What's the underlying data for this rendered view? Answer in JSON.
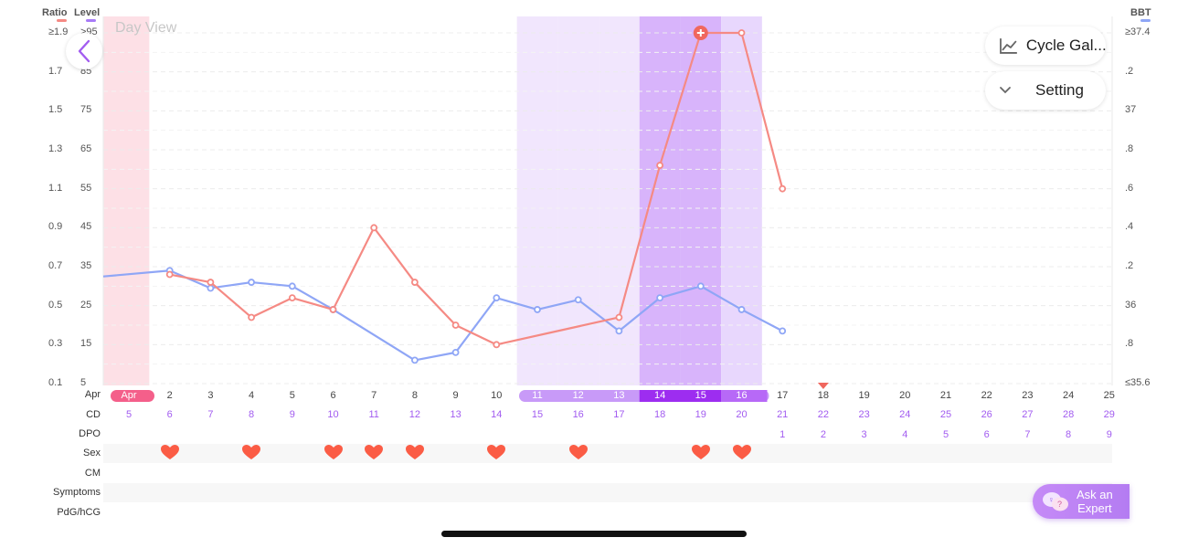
{
  "header": {
    "ratio_label": "Ratio",
    "level_label": "Level",
    "bbt_label": "BBT",
    "ratio_color": "#f58a84",
    "level_color": "#a77af7",
    "bbt_color": "#8fa6f6"
  },
  "day_view_label": "Day View",
  "buttons": {
    "cycle_gallery": "Cycle Gal...",
    "setting": "Setting",
    "ask_expert_line1": "Ask an",
    "ask_expert_line2": "Expert"
  },
  "axes": {
    "ratio_ticks": [
      "≥1.9",
      "1.7",
      "1.5",
      "1.3",
      "1.1",
      "0.9",
      "0.7",
      "0.5",
      "0.3",
      "0.1"
    ],
    "level_ticks": [
      ">95",
      "85",
      "75",
      "65",
      "55",
      "45",
      "35",
      "25",
      "15",
      "5"
    ],
    "bbt_ticks": [
      "≥37.4",
      ".2",
      "37",
      ".8",
      ".6",
      ".4",
      ".2",
      "36",
      ".8",
      "≤35.6"
    ]
  },
  "rows": {
    "labels": [
      "Apr",
      "CD",
      "DPO",
      "Sex",
      "CM",
      "Symptoms",
      "PdG/hCG"
    ],
    "dates": [
      "Apr",
      "2",
      "3",
      "4",
      "5",
      "6",
      "7",
      "8",
      "9",
      "10",
      "11",
      "12",
      "13",
      "14",
      "15",
      "16",
      "17",
      "18",
      "19",
      "20",
      "21",
      "22",
      "23",
      "24",
      "25"
    ],
    "cd": [
      "5",
      "6",
      "7",
      "8",
      "9",
      "10",
      "11",
      "12",
      "13",
      "14",
      "15",
      "16",
      "17",
      "18",
      "19",
      "20",
      "21",
      "22",
      "23",
      "24",
      "25",
      "26",
      "27",
      "28",
      "29"
    ],
    "dpo": [
      "",
      "",
      "",
      "",
      "",
      "",
      "",
      "",
      "",
      "",
      "",
      "",
      "",
      "",
      "",
      "",
      "1",
      "2",
      "3",
      "4",
      "5",
      "6",
      "7",
      "8",
      "9"
    ],
    "sex": [
      false,
      true,
      false,
      true,
      false,
      true,
      true,
      true,
      false,
      true,
      false,
      true,
      false,
      false,
      true,
      true,
      false,
      false,
      false,
      false,
      false,
      false,
      false,
      false,
      false
    ]
  },
  "chart_data": {
    "type": "line",
    "x_labels": [
      "Apr 1",
      "Apr 2",
      "Apr 3",
      "Apr 4",
      "Apr 5",
      "Apr 6",
      "Apr 7",
      "Apr 8",
      "Apr 9",
      "Apr 10",
      "Apr 11",
      "Apr 12",
      "Apr 13",
      "Apr 14",
      "Apr 15",
      "Apr 16",
      "Apr 17",
      "Apr 18"
    ],
    "series": [
      {
        "name": "BBT",
        "x_index": [
          2,
          3,
          4,
          5,
          6,
          8,
          9,
          10,
          11,
          12,
          13,
          14,
          15,
          16,
          17
        ],
        "values": [
          36.18,
          36.09,
          36.12,
          36.1,
          35.98,
          35.72,
          35.76,
          36.04,
          35.98,
          36.03,
          35.87,
          36.04,
          36.1,
          35.98,
          35.87
        ],
        "lead_in_value": 36.15
      },
      {
        "name": "Ratio",
        "x_index": [
          2,
          3,
          4,
          5,
          6,
          7,
          8,
          9,
          10,
          13,
          14,
          15,
          16,
          17
        ],
        "values": [
          0.66,
          0.62,
          0.44,
          0.54,
          0.48,
          0.9,
          0.62,
          0.4,
          0.3,
          0.44,
          1.22,
          1.9,
          1.9,
          1.1
        ],
        "peak_marker_index": 15
      }
    ],
    "ratio_range": [
      0.1,
      1.9
    ],
    "level_range": [
      5,
      95
    ],
    "bbt_range": [
      35.6,
      37.4
    ],
    "highlights": {
      "period_days": [
        1
      ],
      "fertile_days": [
        11,
        12,
        13
      ],
      "peak_days": [
        14,
        15
      ],
      "post_peak_days": [
        16
      ],
      "ovulation_marker_day": 18
    }
  }
}
